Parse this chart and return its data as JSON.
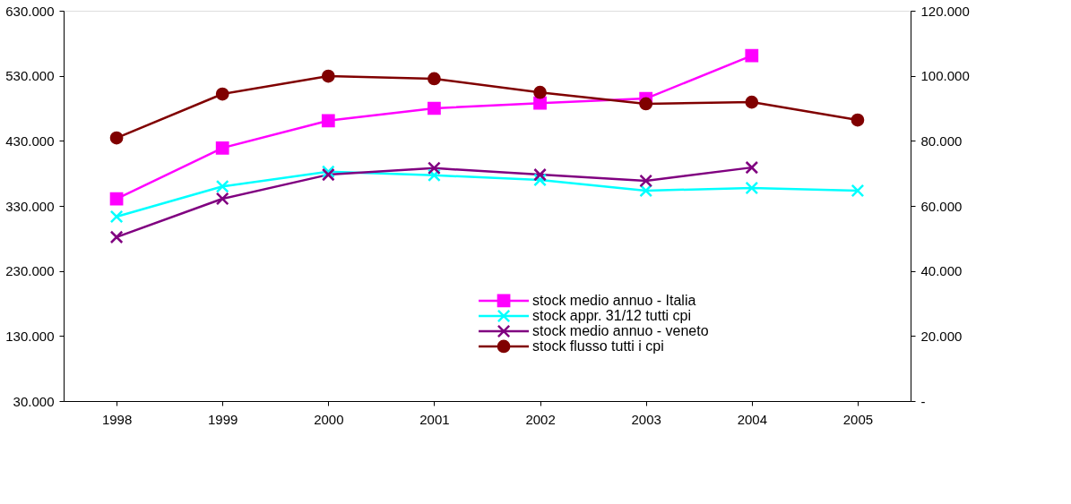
{
  "chart_data": {
    "type": "line",
    "categories": [
      "1998",
      "1999",
      "2000",
      "2001",
      "2002",
      "2003",
      "2004",
      "2005"
    ],
    "series": [
      {
        "name": "stock medio annuo - Italia",
        "color": "#ff00ff",
        "marker": "square",
        "values": [
          341000,
          419000,
          461000,
          480000,
          488000,
          495000,
          561000,
          null
        ]
      },
      {
        "name": "stock appr. 31/12 tutti cpi",
        "color": "#00ffff",
        "marker": "cross",
        "axis": "y2",
        "values": [
          56700,
          66000,
          70500,
          69400,
          68000,
          64700,
          65500,
          64700
        ]
      },
      {
        "name": "stock medio annuo -  veneto",
        "color": "#800080",
        "marker": "cross",
        "axis": "y2",
        "values": [
          50400,
          62200,
          69600,
          71600,
          69600,
          67700,
          71800,
          null
        ]
      },
      {
        "name": "stock flusso tutti i cpi",
        "color": "#800000",
        "marker": "circle",
        "axis": "y2",
        "values": [
          80900,
          94400,
          99900,
          99100,
          94900,
          91400,
          91900,
          86400
        ]
      }
    ],
    "ylim": [
      30000,
      630000
    ],
    "yticks": [
      {
        "value": 30000,
        "label": "30.000"
      },
      {
        "value": 130000,
        "label": "130.000"
      },
      {
        "value": 230000,
        "label": "230.000"
      },
      {
        "value": 330000,
        "label": "330.000"
      },
      {
        "value": 430000,
        "label": "430.000"
      },
      {
        "value": 530000,
        "label": "530.000"
      },
      {
        "value": 630000,
        "label": "630.000"
      }
    ],
    "y2lim": [
      0,
      120000
    ],
    "y2ticks": [
      {
        "value": 0,
        "label": "-"
      },
      {
        "value": 20000,
        "label": "20.000"
      },
      {
        "value": 40000,
        "label": "40.000"
      },
      {
        "value": 60000,
        "label": "60.000"
      },
      {
        "value": 80000,
        "label": "80.000"
      },
      {
        "value": 100000,
        "label": "100.000"
      },
      {
        "value": 120000,
        "label": "120.000"
      }
    ],
    "grid": false,
    "legend": "bottom",
    "line_style": "solid"
  }
}
